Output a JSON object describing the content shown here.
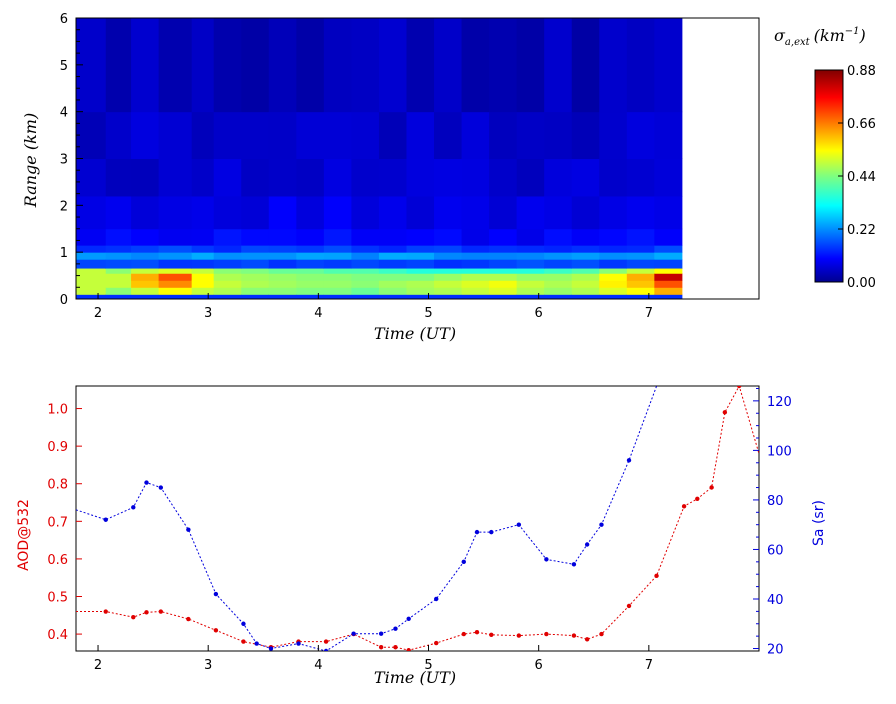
{
  "chart_data": [
    {
      "type": "heatmap",
      "xlabel": "Time (UT)",
      "ylabel": "Range (km)",
      "xlim": [
        1.8,
        8.0
      ],
      "ylim": [
        0,
        6
      ],
      "data_end_time": 7.3,
      "x_ticks": [
        2,
        3,
        4,
        5,
        6,
        7
      ],
      "y_ticks": [
        0,
        1,
        2,
        3,
        4,
        5,
        6
      ],
      "colorbar": {
        "label": "σa,ext (km⁻¹)",
        "label_main": "σ",
        "label_sub": "a,ext",
        "label_unit": "(km",
        "label_exp": "−1",
        "label_close": ")",
        "range": [
          0.0,
          0.88
        ],
        "ticks": [
          "0.00",
          "0.22",
          "0.44",
          "0.66",
          "0.88"
        ],
        "colormap": "jet"
      },
      "time_columns": [
        1.8,
        2.07,
        2.3,
        2.55,
        2.85,
        3.05,
        3.3,
        3.55,
        3.8,
        4.05,
        4.3,
        4.55,
        4.8,
        5.05,
        5.3,
        5.55,
        5.8,
        6.05,
        6.3,
        6.55,
        6.8,
        7.05,
        7.3
      ],
      "surface_profile": [
        [
          0.15,
          0.5,
          0.5,
          0.5,
          0.5,
          0.08
        ],
        [
          0.15,
          0.45,
          0.5,
          0.5,
          0.45,
          0.08
        ],
        [
          0.15,
          0.5,
          0.6,
          0.62,
          0.5,
          0.08
        ],
        [
          0.15,
          0.55,
          0.65,
          0.7,
          0.52,
          0.08
        ],
        [
          0.15,
          0.5,
          0.55,
          0.55,
          0.5,
          0.08
        ],
        [
          0.15,
          0.48,
          0.5,
          0.48,
          0.45,
          0.08
        ],
        [
          0.15,
          0.45,
          0.48,
          0.47,
          0.44,
          0.08
        ],
        [
          0.15,
          0.45,
          0.47,
          0.46,
          0.42,
          0.08
        ],
        [
          0.15,
          0.44,
          0.46,
          0.45,
          0.42,
          0.08
        ],
        [
          0.15,
          0.44,
          0.46,
          0.45,
          0.4,
          0.08
        ],
        [
          0.15,
          0.42,
          0.45,
          0.44,
          0.4,
          0.08
        ],
        [
          0.15,
          0.45,
          0.47,
          0.44,
          0.38,
          0.08
        ],
        [
          0.15,
          0.47,
          0.48,
          0.44,
          0.36,
          0.08
        ],
        [
          0.15,
          0.48,
          0.5,
          0.46,
          0.36,
          0.08
        ],
        [
          0.15,
          0.5,
          0.52,
          0.48,
          0.36,
          0.08
        ],
        [
          0.15,
          0.52,
          0.54,
          0.48,
          0.36,
          0.08
        ],
        [
          0.15,
          0.48,
          0.5,
          0.46,
          0.36,
          0.08
        ],
        [
          0.15,
          0.46,
          0.48,
          0.46,
          0.38,
          0.08
        ],
        [
          0.15,
          0.48,
          0.5,
          0.48,
          0.4,
          0.08
        ],
        [
          0.15,
          0.52,
          0.56,
          0.55,
          0.45,
          0.08
        ],
        [
          0.15,
          0.55,
          0.6,
          0.62,
          0.5,
          0.08
        ],
        [
          0.15,
          0.62,
          0.7,
          0.82,
          0.55,
          0.08
        ]
      ],
      "height_bins_km": [
        0,
        0.1,
        0.25,
        0.4,
        0.55,
        0.65
      ]
    },
    {
      "type": "line",
      "xlabel": "Time (UT)",
      "xlim": [
        1.8,
        8.0
      ],
      "x_ticks": [
        2,
        3,
        4,
        5,
        6,
        7
      ],
      "left_axis": {
        "label": "AOD@532",
        "ylim": [
          0.355,
          1.06
        ],
        "ticks": [
          "0.4",
          "0.5",
          "0.6",
          "0.7",
          "0.8",
          "0.9",
          "1.0"
        ],
        "tick_values": [
          0.4,
          0.5,
          0.6,
          0.7,
          0.8,
          0.9,
          1.0
        ],
        "color": "#e00000"
      },
      "right_axis": {
        "label": "Sa (sr)",
        "ylim": [
          19,
          126
        ],
        "ticks": [
          "20",
          "40",
          "60",
          "80",
          "100",
          "120"
        ],
        "tick_values": [
          20,
          40,
          60,
          80,
          100,
          120
        ],
        "color": "#0000dd"
      },
      "series": [
        {
          "name": "AOD@532",
          "axis": "left",
          "color": "#e00000",
          "x": [
            1.8,
            2.07,
            2.32,
            2.44,
            2.57,
            2.82,
            3.07,
            3.32,
            3.57,
            3.82,
            4.07,
            4.32,
            4.57,
            4.7,
            4.82,
            5.07,
            5.32,
            5.44,
            5.57,
            5.82,
            6.07,
            6.32,
            6.44,
            6.57,
            6.82,
            7.07,
            7.32,
            7.44,
            7.57,
            7.69,
            7.82,
            8.0
          ],
          "y": [
            0.46,
            0.46,
            0.445,
            0.458,
            0.46,
            0.44,
            0.41,
            0.38,
            0.365,
            0.38,
            0.38,
            0.4,
            0.365,
            0.365,
            0.357,
            0.376,
            0.4,
            0.405,
            0.398,
            0.396,
            0.4,
            0.396,
            0.386,
            0.4,
            0.475,
            0.555,
            0.74,
            0.76,
            0.79,
            0.99,
            1.06,
            0.88
          ]
        },
        {
          "name": "Sa (sr)",
          "axis": "right",
          "color": "#0000dd",
          "x": [
            1.8,
            2.07,
            2.32,
            2.44,
            2.57,
            2.82,
            3.07,
            3.32,
            3.44,
            3.57,
            3.82,
            4.07,
            4.32,
            4.57,
            4.7,
            4.82,
            5.07,
            5.32,
            5.44,
            5.57,
            5.82,
            6.07,
            6.32,
            6.44,
            6.57,
            6.82,
            7.07
          ],
          "y": [
            76,
            72,
            77,
            87,
            85,
            68,
            42,
            30,
            22,
            20,
            22,
            19,
            26,
            26,
            28,
            32,
            40,
            55,
            67,
            67,
            70,
            56,
            54,
            62,
            70,
            96,
            126
          ]
        }
      ]
    }
  ]
}
